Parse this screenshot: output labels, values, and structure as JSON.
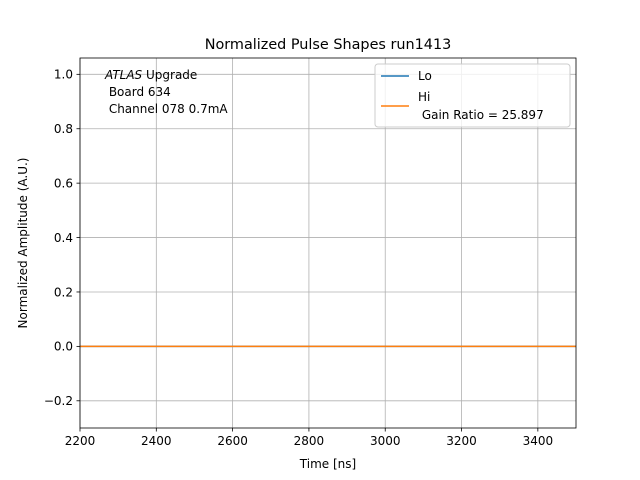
{
  "chart_data": {
    "type": "line",
    "title": "Normalized Pulse Shapes run1413",
    "xlabel": "Time [ns]",
    "ylabel": "Normalized Amplitude (A.U.)",
    "xlim": [
      2200,
      3500
    ],
    "ylim": [
      -0.3,
      1.06
    ],
    "xticks": [
      2200,
      2400,
      2600,
      2800,
      3000,
      3200,
      3400
    ],
    "yticks": [
      -0.2,
      0.0,
      0.2,
      0.4,
      0.6,
      0.8,
      1.0
    ],
    "xtick_labels": [
      "2200",
      "2400",
      "2600",
      "2800",
      "3000",
      "3200",
      "3400"
    ],
    "ytick_labels": [
      "−0.2",
      "0.0",
      "0.2",
      "0.4",
      "0.6",
      "0.8",
      "1.0"
    ],
    "grid": true,
    "legend_position": "top-right",
    "annotation": {
      "italic": "ATLAS",
      "first_rest": " Upgrade",
      "lines": [
        " Board 634",
        " Channel 078 0.7mA"
      ]
    },
    "series": [
      {
        "name": "Lo",
        "color": "#1f77b4",
        "x": [
          2200,
          2400,
          2600,
          2800,
          3000,
          3200,
          3400,
          3500
        ],
        "y": [
          0,
          0,
          0,
          0,
          0,
          0,
          0,
          0
        ]
      },
      {
        "name": "Hi",
        "name_line2": " Gain Ratio = 25.897",
        "color": "#ff7f0e",
        "x": [
          2200,
          2400,
          2600,
          2800,
          3000,
          3200,
          3400,
          3500
        ],
        "y": [
          0,
          0,
          0,
          0,
          0,
          0,
          0,
          0
        ]
      }
    ]
  }
}
